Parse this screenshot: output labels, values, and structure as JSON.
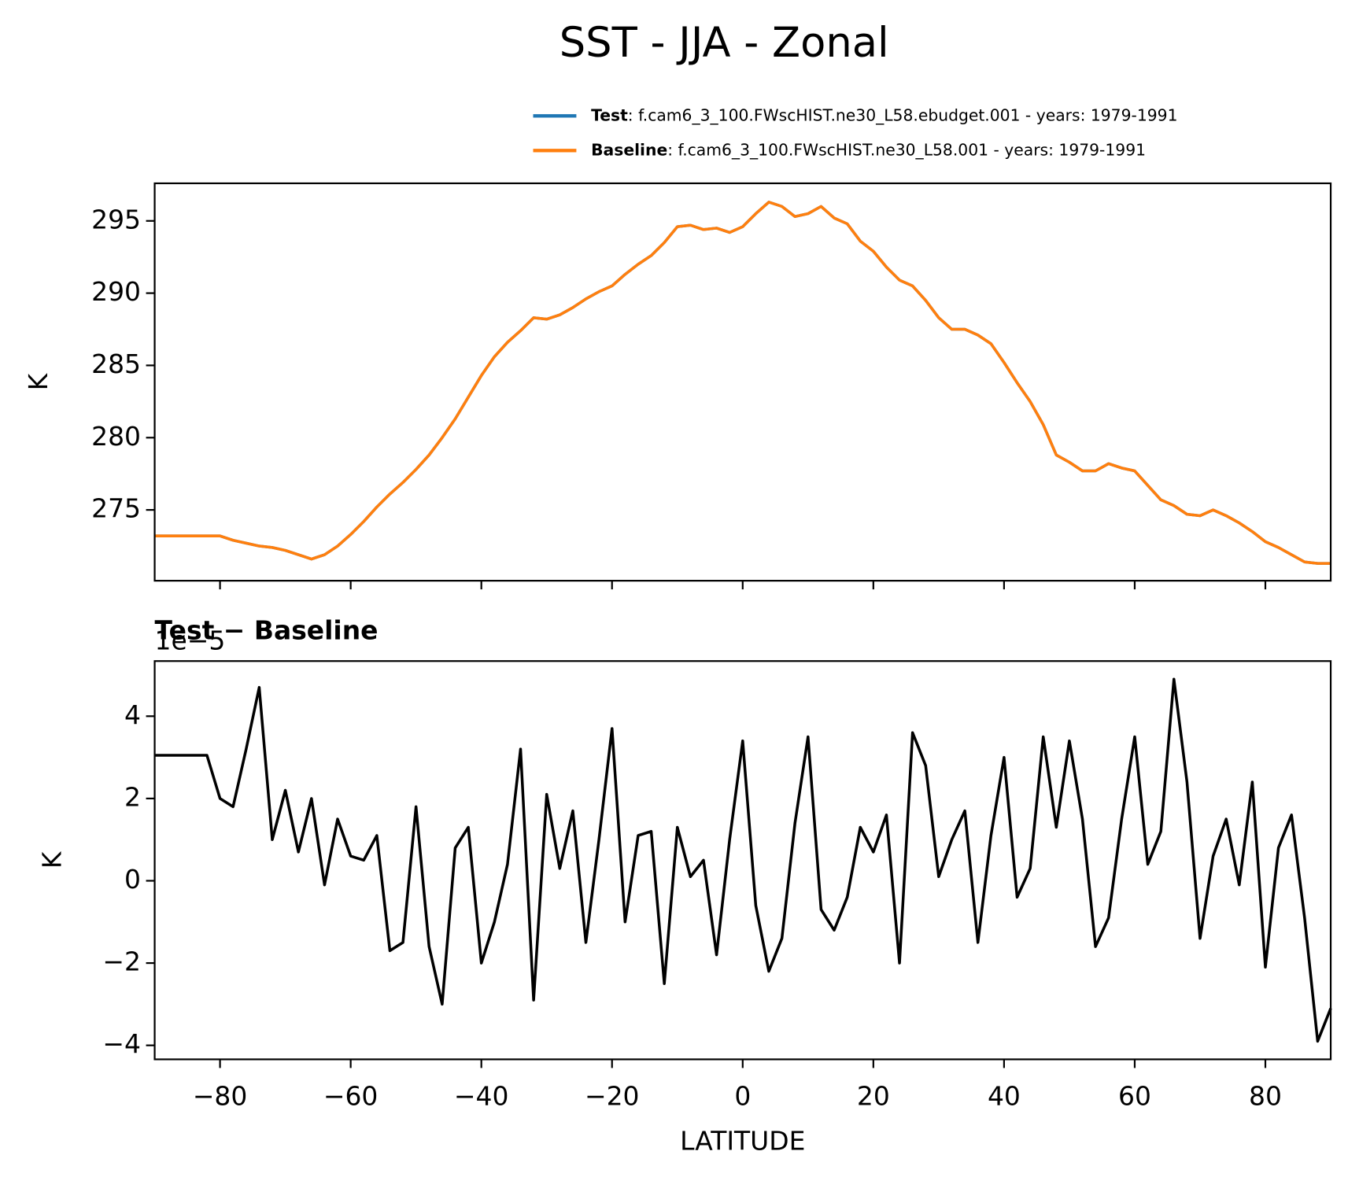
{
  "title": "SST - JJA - Zonal",
  "chart_data": [
    {
      "type": "line",
      "ylabel": "K",
      "x": [
        -90,
        -88,
        -86,
        -84,
        -82,
        -80,
        -78,
        -76,
        -74,
        -72,
        -70,
        -68,
        -66,
        -64,
        -62,
        -60,
        -58,
        -56,
        -54,
        -52,
        -50,
        -48,
        -46,
        -44,
        -42,
        -40,
        -38,
        -36,
        -34,
        -32,
        -30,
        -28,
        -26,
        -24,
        -22,
        -20,
        -18,
        -16,
        -14,
        -12,
        -10,
        -8,
        -6,
        -4,
        -2,
        0,
        2,
        4,
        6,
        8,
        10,
        12,
        14,
        16,
        18,
        20,
        22,
        24,
        26,
        28,
        30,
        32,
        34,
        36,
        38,
        40,
        42,
        44,
        46,
        48,
        50,
        52,
        54,
        56,
        58,
        60,
        62,
        64,
        66,
        68,
        70,
        72,
        74,
        76,
        78,
        80,
        82,
        84,
        86,
        88,
        90
      ],
      "series": [
        {
          "name": "Test",
          "description": ": f.cam6_3_100.FWscHIST.ne30_L58.ebudget.001 - years: 1979-1991",
          "color": "#1f77b4",
          "values": [
            273.2,
            273.2,
            273.2,
            273.2,
            273.2,
            273.2,
            272.9,
            272.7,
            272.5,
            272.4,
            272.2,
            271.9,
            271.6,
            271.9,
            272.5,
            273.3,
            274.2,
            275.2,
            276.1,
            276.9,
            277.8,
            278.8,
            280.0,
            281.3,
            282.8,
            284.3,
            285.6,
            286.6,
            287.4,
            288.3,
            288.2,
            288.5,
            289.0,
            289.6,
            290.1,
            290.5,
            291.3,
            292.0,
            292.6,
            293.5,
            294.6,
            294.7,
            294.4,
            294.5,
            294.2,
            294.6,
            295.5,
            296.3,
            296.0,
            295.3,
            295.5,
            296.0,
            295.2,
            294.8,
            293.6,
            292.9,
            291.8,
            290.9,
            290.5,
            289.5,
            288.3,
            287.5,
            287.5,
            287.1,
            286.5,
            285.2,
            283.8,
            282.5,
            280.9,
            278.8,
            278.3,
            277.7,
            277.7,
            278.2,
            277.9,
            277.7,
            276.7,
            275.7,
            275.3,
            274.7,
            274.6,
            275.0,
            274.6,
            274.1,
            273.5,
            272.8,
            272.4,
            271.9,
            271.4,
            271.3,
            271.3
          ]
        },
        {
          "name": "Baseline",
          "description": ": f.cam6_3_100.FWscHIST.ne30_L58.001 - years: 1979-1991",
          "color": "#ff7f0e",
          "values": [
            273.2,
            273.2,
            273.2,
            273.2,
            273.2,
            273.2,
            272.9,
            272.7,
            272.5,
            272.4,
            272.2,
            271.9,
            271.6,
            271.9,
            272.5,
            273.3,
            274.2,
            275.2,
            276.1,
            276.9,
            277.8,
            278.8,
            280.0,
            281.3,
            282.8,
            284.3,
            285.6,
            286.6,
            287.4,
            288.3,
            288.2,
            288.5,
            289.0,
            289.6,
            290.1,
            290.5,
            291.3,
            292.0,
            292.6,
            293.5,
            294.6,
            294.7,
            294.4,
            294.5,
            294.2,
            294.6,
            295.5,
            296.3,
            296.0,
            295.3,
            295.5,
            296.0,
            295.2,
            294.8,
            293.6,
            292.9,
            291.8,
            290.9,
            290.5,
            289.5,
            288.3,
            287.5,
            287.5,
            287.1,
            286.5,
            285.2,
            283.8,
            282.5,
            280.9,
            278.8,
            278.3,
            277.7,
            277.7,
            278.2,
            277.9,
            277.7,
            276.7,
            275.7,
            275.3,
            274.7,
            274.6,
            275.0,
            274.6,
            274.1,
            273.5,
            272.8,
            272.4,
            271.9,
            271.4,
            271.3,
            271.3
          ]
        }
      ],
      "xlim": [
        -90,
        90
      ],
      "xticks": [
        -80,
        -60,
        -40,
        -20,
        0,
        20,
        40,
        60,
        80
      ],
      "ylim": [
        270.1,
        297.6
      ],
      "yticks": [
        275,
        280,
        285,
        290,
        295
      ]
    },
    {
      "type": "line",
      "title": "Test − Baseline",
      "offset_label": "1e−5",
      "xlabel": "LATITUDE",
      "ylabel": "K",
      "x": [
        -90,
        -88,
        -86,
        -84,
        -82,
        -80,
        -78,
        -76,
        -74,
        -72,
        -70,
        -68,
        -66,
        -64,
        -62,
        -60,
        -58,
        -56,
        -54,
        -52,
        -50,
        -48,
        -46,
        -44,
        -42,
        -40,
        -38,
        -36,
        -34,
        -32,
        -30,
        -28,
        -26,
        -24,
        -22,
        -20,
        -18,
        -16,
        -14,
        -12,
        -10,
        -8,
        -6,
        -4,
        -2,
        0,
        2,
        4,
        6,
        8,
        10,
        12,
        14,
        16,
        18,
        20,
        22,
        24,
        26,
        28,
        30,
        32,
        34,
        36,
        38,
        40,
        42,
        44,
        46,
        48,
        50,
        52,
        54,
        56,
        58,
        60,
        62,
        64,
        66,
        68,
        70,
        72,
        74,
        76,
        78,
        80,
        82,
        84,
        86,
        88,
        90
      ],
      "series": [
        {
          "color": "#000000",
          "values": [
            3.05,
            3.05,
            3.05,
            3.05,
            3.05,
            2.0,
            1.8,
            3.2,
            4.7,
            1.0,
            2.2,
            0.7,
            2.0,
            -0.1,
            1.5,
            0.6,
            0.5,
            1.1,
            -1.7,
            -1.5,
            1.8,
            -1.6,
            -3.0,
            0.8,
            1.3,
            -2.0,
            -1.0,
            0.4,
            3.2,
            -2.9,
            2.1,
            0.3,
            1.7,
            -1.5,
            1.0,
            3.7,
            -1.0,
            1.1,
            1.2,
            -2.5,
            1.3,
            0.1,
            0.5,
            -1.8,
            1.0,
            3.4,
            -0.6,
            -2.2,
            -1.4,
            1.4,
            3.5,
            -0.7,
            -1.2,
            -0.4,
            1.3,
            0.7,
            1.6,
            -2.0,
            3.6,
            2.8,
            0.1,
            1.0,
            1.7,
            -1.5,
            1.1,
            3.0,
            -0.4,
            0.3,
            3.5,
            1.3,
            3.4,
            1.5,
            -1.6,
            -0.9,
            1.5,
            3.5,
            0.4,
            1.2,
            4.9,
            2.4,
            -1.4,
            0.6,
            1.5,
            -0.1,
            2.4,
            -2.1,
            0.8,
            1.6,
            -0.9,
            -3.9,
            -3.1
          ]
        }
      ],
      "xlim": [
        -90,
        90
      ],
      "xticks": [
        {
          "value": -80,
          "label": "−80"
        },
        {
          "value": -60,
          "label": "−60"
        },
        {
          "value": -40,
          "label": "−40"
        },
        {
          "value": -20,
          "label": "−20"
        },
        0,
        20,
        40,
        60,
        80
      ],
      "ylim": [
        -4.34,
        5.34
      ],
      "yticks": [
        {
          "value": -4,
          "label": "−4"
        },
        {
          "value": -2,
          "label": "−2"
        },
        0,
        2,
        4
      ]
    }
  ]
}
